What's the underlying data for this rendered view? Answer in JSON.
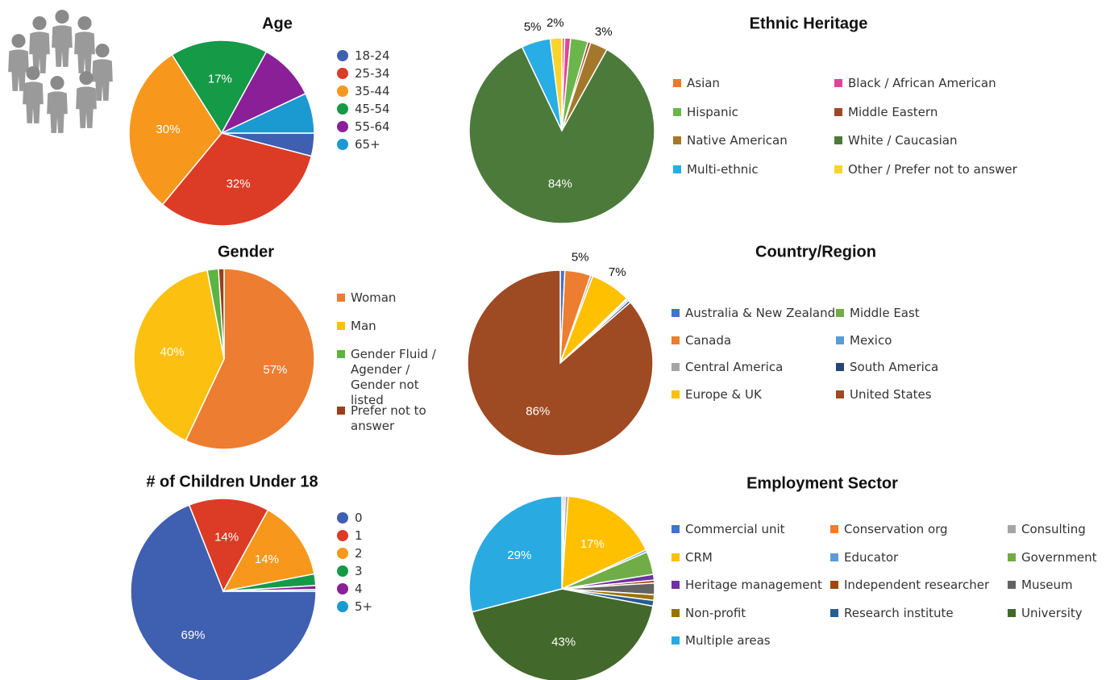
{
  "chart_data": [
    {
      "type": "pie",
      "title": "Age",
      "categories": [
        "18-24",
        "25-34",
        "35-44",
        "45-54",
        "55-64",
        "65+"
      ],
      "values": [
        4,
        32,
        30,
        17,
        10,
        7
      ],
      "value_labels": [
        null,
        "32%",
        "30%",
        "17%",
        null,
        null
      ],
      "colors": [
        "#3f5fb0",
        "#dc3b26",
        "#f7981d",
        "#159a48",
        "#8b1f98",
        "#1b9ad2"
      ]
    },
    {
      "type": "pie",
      "title": "Ethnic Heritage",
      "categories": [
        "Asian",
        "Black / African American",
        "Hispanic",
        "Middle Eastern",
        "Native American",
        "White / Caucasian",
        "Multi-ethnic",
        "Other / Prefer not to answer"
      ],
      "values": [
        0.5,
        1,
        3,
        0.5,
        3,
        84,
        5,
        2
      ],
      "value_labels": [
        null,
        null,
        null,
        null,
        "3%",
        "84%",
        "5%",
        "2%"
      ],
      "colors": [
        "#f0772a",
        "#e0449b",
        "#6ab64c",
        "#a0462a",
        "#a3782a",
        "#4b7a3a",
        "#28aee4",
        "#fcd32a"
      ]
    },
    {
      "type": "pie",
      "title": "Gender",
      "categories": [
        "Woman",
        "Man",
        "Gender Fluid / Agender / Gender not listed",
        "Prefer not to answer"
      ],
      "values": [
        57,
        40,
        2,
        1
      ],
      "value_labels": [
        "57%",
        "40%",
        null,
        null
      ],
      "colors": [
        "#ed7d31",
        "#fcc010",
        "#5cb443",
        "#9a3f1c"
      ]
    },
    {
      "type": "pie",
      "title": "Country/Region",
      "categories": [
        "Australia & New Zealand",
        "Canada",
        "Central America",
        "Europe & UK",
        "Middle East",
        "Mexico",
        "South America",
        "United States"
      ],
      "values": [
        0.8,
        4.5,
        0.4,
        7,
        0.2,
        0.3,
        0.4,
        86
      ],
      "value_labels": [
        null,
        "5%",
        null,
        "7%",
        null,
        null,
        null,
        "86%"
      ],
      "colors": [
        "#4472c4",
        "#ed7d31",
        "#a5a5a5",
        "#ffc000",
        "#70ad47",
        "#5b9bd5",
        "#264478",
        "#9e4a22"
      ]
    },
    {
      "type": "pie",
      "title": "# of Children Under 18",
      "categories": [
        "0",
        "1",
        "2",
        "3",
        "4",
        "5+"
      ],
      "values": [
        69,
        14,
        14,
        2,
        0.7,
        0.3
      ],
      "value_labels": [
        "69%",
        "14%",
        "14%",
        null,
        null,
        null
      ],
      "colors": [
        "#3f5fb0",
        "#dc3b26",
        "#f7981d",
        "#159a48",
        "#8b1f98",
        "#1b9ad2"
      ]
    },
    {
      "type": "pie",
      "title": "Employment Sector",
      "categories": [
        "Commercial unit",
        "Conservation org",
        "Consulting",
        "CRM",
        "Educator",
        "Government",
        "Heritage management",
        "Independent researcher",
        "Museum",
        "Non-profit",
        "Research institute",
        "University",
        "Multiple areas"
      ],
      "values": [
        0.3,
        0.3,
        0.5,
        17,
        0.4,
        4,
        1,
        0.5,
        2,
        1,
        1,
        43,
        29
      ],
      "value_labels": [
        null,
        null,
        null,
        "17%",
        null,
        null,
        null,
        null,
        null,
        null,
        null,
        "43%",
        "29%"
      ],
      "colors": [
        "#4472c4",
        "#ed7d31",
        "#a5a5a5",
        "#ffc000",
        "#5b9bd5",
        "#70ad47",
        "#7030a0",
        "#9e480e",
        "#636363",
        "#997300",
        "#255e91",
        "#43682b",
        "#29abe2"
      ]
    }
  ]
}
